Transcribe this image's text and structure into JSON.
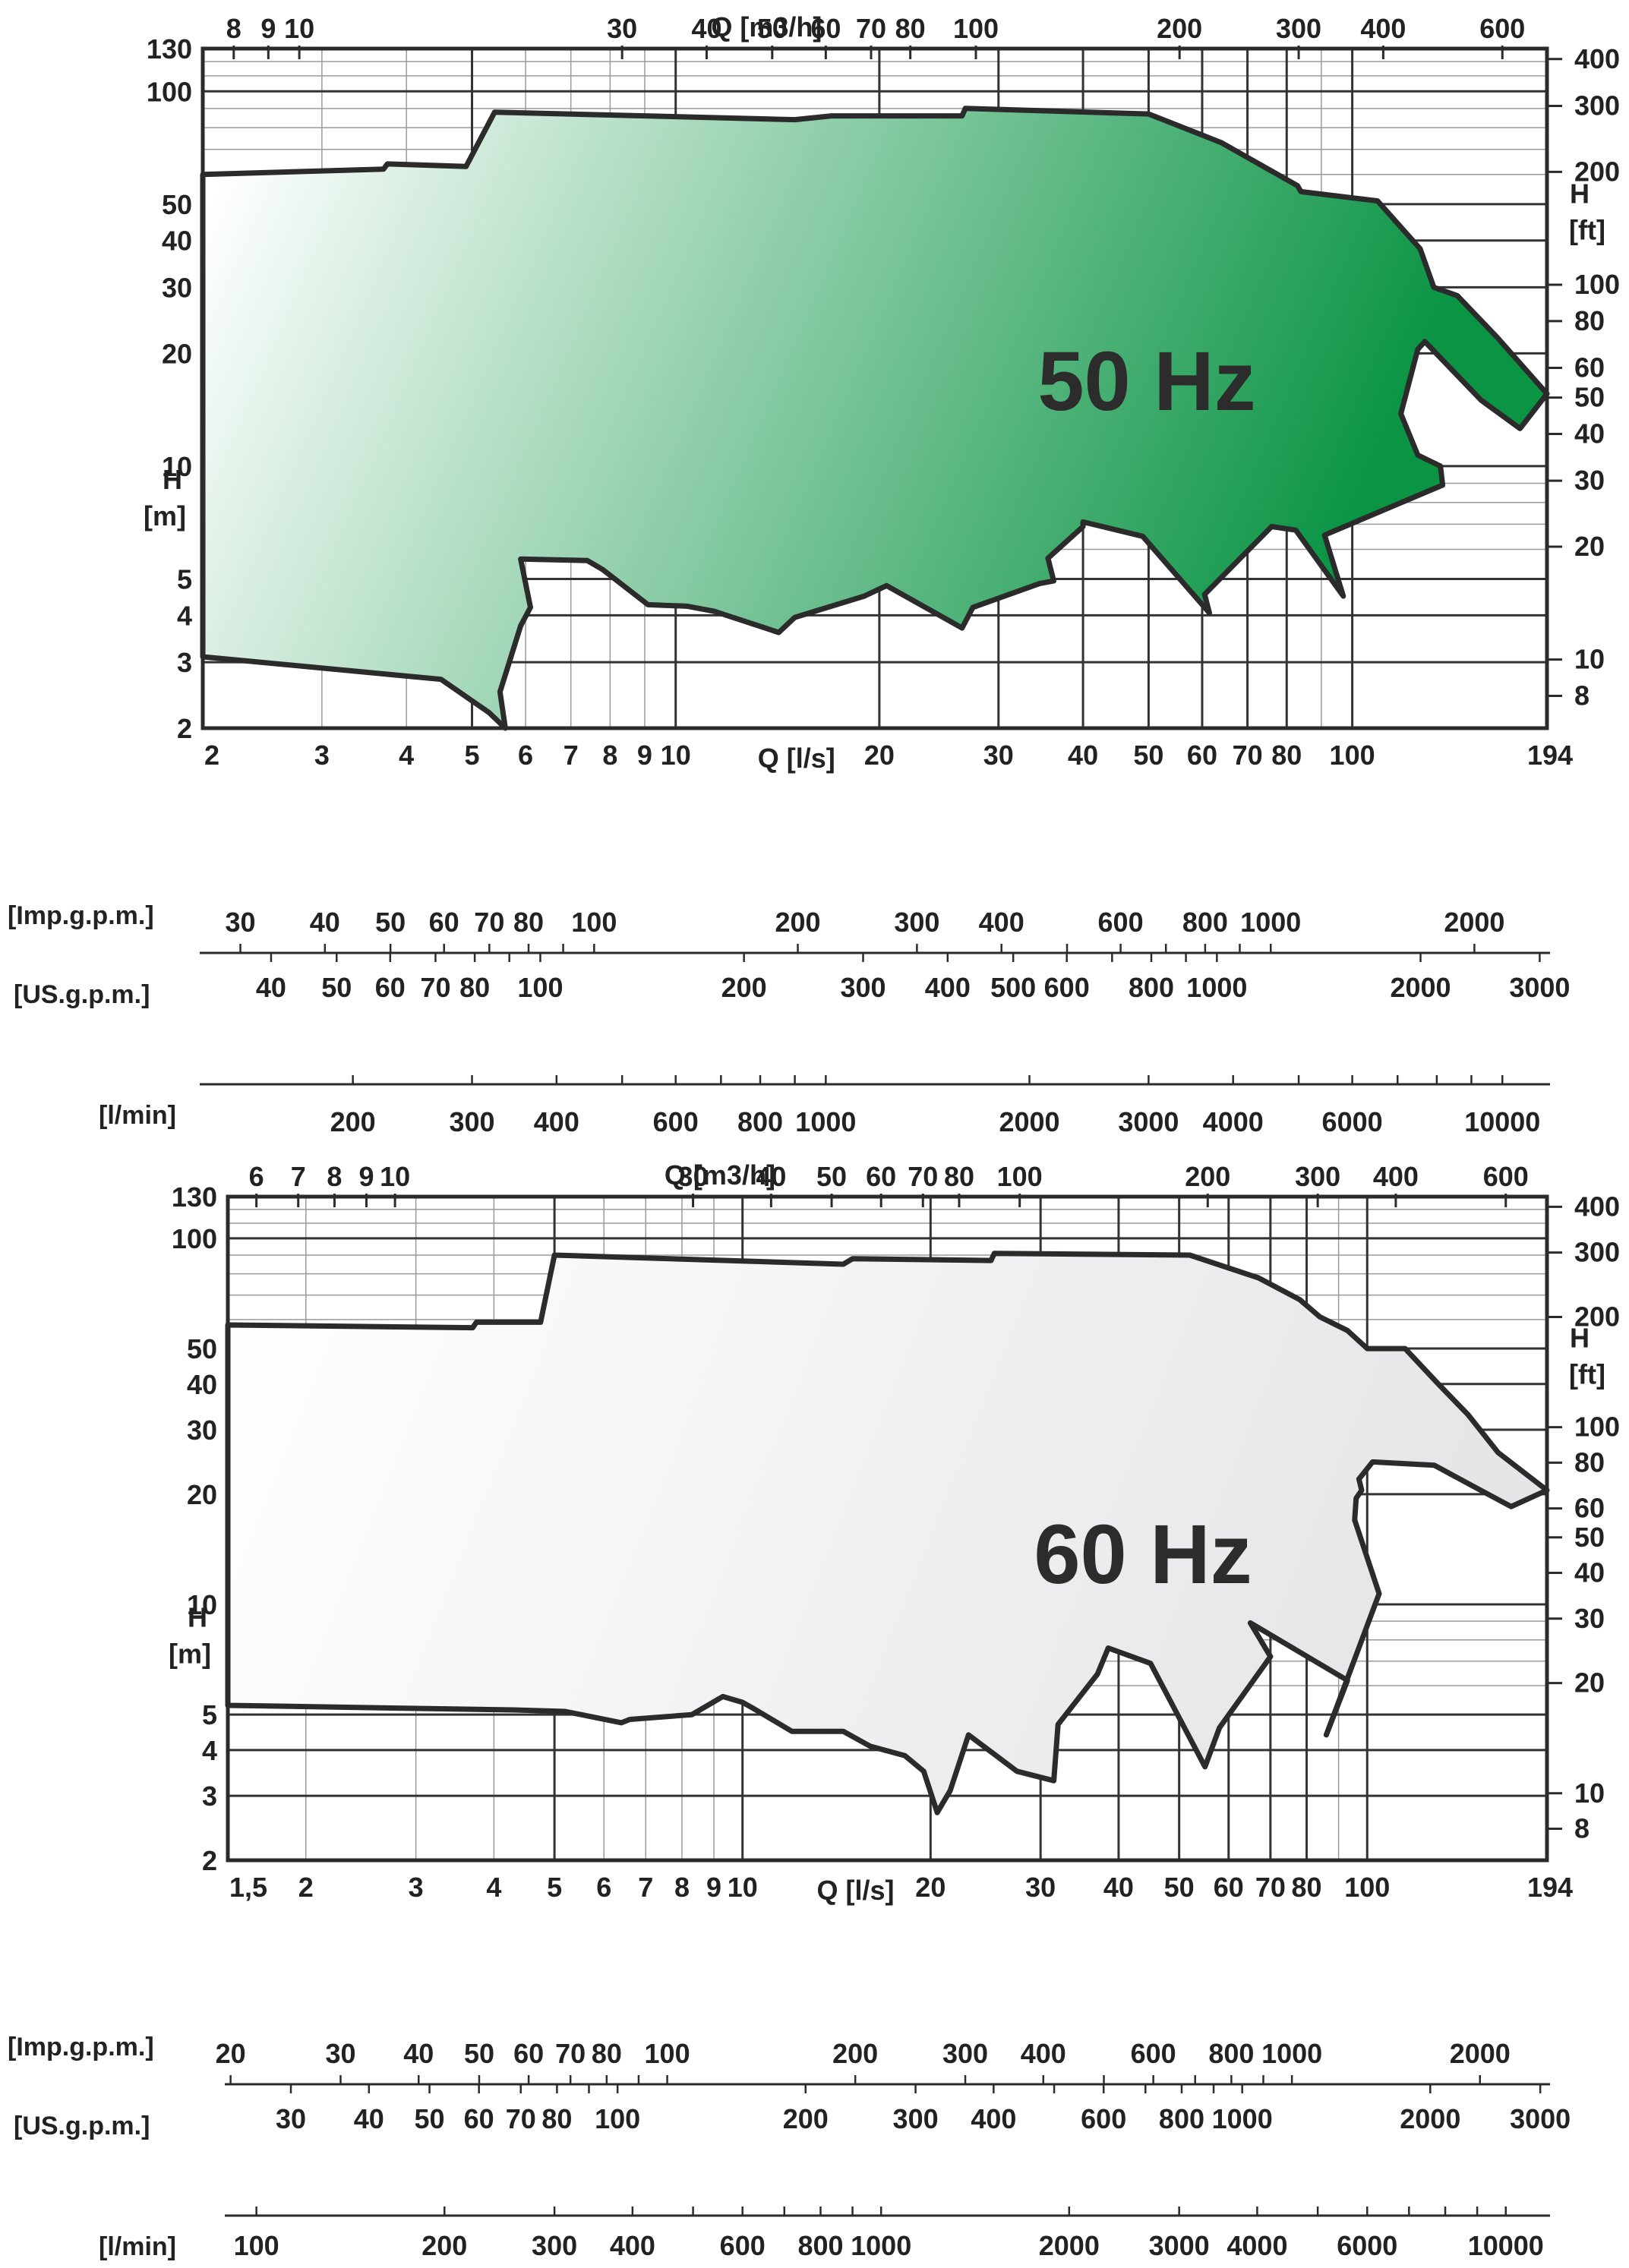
{
  "colors": {
    "frame": "#2b2b2b",
    "grid_major": "#333333",
    "grid_minor": "#9a9a9a",
    "envelope_50_light": "#ffffff",
    "envelope_50_dark": "#0a9444",
    "envelope_60_light": "#ffffff",
    "envelope_60_dark": "#e4e6e7",
    "text": "#222222"
  },
  "chart_data": [
    {
      "type": "area",
      "title": "50 Hz",
      "x_scale": "log",
      "y_scale": "log",
      "xlabel": "Q [l/s]",
      "ylabel": "H [m]",
      "xlim": [
        2,
        194
      ],
      "ylim": [
        2,
        130
      ],
      "x_ticks": [
        "2",
        "3",
        "4",
        "5",
        "6",
        "7",
        "8",
        "9",
        "10",
        "20",
        "30",
        "40",
        "50",
        "60",
        "70",
        "80",
        "100",
        "194"
      ],
      "y_ticks": [
        "2",
        "3",
        "4",
        "5",
        "10",
        "20",
        "30",
        "40",
        "50",
        "100",
        "130"
      ],
      "top_axis": {
        "label": "Q [m3/h]",
        "ticks": [
          "8",
          "9",
          "10",
          "30",
          "40",
          "50",
          "60",
          "70",
          "80",
          "100",
          "200",
          "300",
          "400",
          "600"
        ]
      },
      "right_axis": {
        "label": "H [ft]",
        "ticks": [
          "8",
          "10",
          "20",
          "30",
          "40",
          "50",
          "60",
          "80",
          "100",
          "200",
          "300",
          "400"
        ]
      },
      "envelope": [
        [
          2,
          60
        ],
        [
          3.7,
          62
        ],
        [
          3.75,
          64
        ],
        [
          4.9,
          63
        ],
        [
          5.4,
          88
        ],
        [
          15,
          84
        ],
        [
          17,
          86
        ],
        [
          26.5,
          86
        ],
        [
          26.8,
          90
        ],
        [
          50,
          87
        ],
        [
          64,
          73
        ],
        [
          83,
          56
        ],
        [
          84,
          54
        ],
        [
          109,
          51
        ],
        [
          126,
          38
        ],
        [
          132,
          30
        ],
        [
          143,
          28.5
        ],
        [
          164,
          22
        ],
        [
          194,
          15.6
        ],
        [
          177,
          12.6
        ],
        [
          155,
          15
        ],
        [
          128,
          21.5
        ],
        [
          125,
          20.5
        ],
        [
          118,
          13.8
        ],
        [
          125,
          10.7
        ],
        [
          135,
          10
        ],
        [
          136,
          8.9
        ],
        [
          91,
          6.55
        ],
        [
          97,
          4.5
        ],
        [
          82.5,
          6.75
        ],
        [
          76,
          6.9
        ],
        [
          60.5,
          4.55
        ],
        [
          61.5,
          4.06
        ],
        [
          49,
          6.5
        ],
        [
          40,
          7.1
        ],
        [
          40,
          6.9
        ],
        [
          35.5,
          5.68
        ],
        [
          36.2,
          4.94
        ],
        [
          34.5,
          4.86
        ],
        [
          27.5,
          4.2
        ],
        [
          26.5,
          3.7
        ],
        [
          20.5,
          4.8
        ],
        [
          19,
          4.5
        ],
        [
          15,
          3.95
        ],
        [
          14.2,
          3.6
        ],
        [
          11.4,
          4.1
        ],
        [
          10.4,
          4.23
        ],
        [
          9.1,
          4.27
        ],
        [
          7.8,
          5.3
        ],
        [
          7.4,
          5.6
        ],
        [
          5.9,
          5.65
        ],
        [
          6.1,
          4.2
        ],
        [
          5.9,
          3.75
        ],
        [
          5.5,
          2.5
        ],
        [
          5.6,
          2.0
        ],
        [
          5.3,
          2.2
        ],
        [
          4.5,
          2.7
        ],
        [
          2,
          3.1
        ]
      ]
    },
    {
      "type": "area",
      "title": "60 Hz",
      "x_scale": "log",
      "y_scale": "log",
      "xlabel": "Q [l/s]",
      "ylabel": "H [m]",
      "xlim": [
        1.5,
        194
      ],
      "ylim": [
        2,
        130
      ],
      "x_ticks": [
        "1,5",
        "2",
        "3",
        "4",
        "5",
        "6",
        "7",
        "8",
        "9",
        "10",
        "20",
        "30",
        "40",
        "50",
        "60",
        "70",
        "80",
        "100",
        "194"
      ],
      "y_ticks": [
        "2",
        "3",
        "4",
        "5",
        "10",
        "20",
        "30",
        "40",
        "50",
        "100",
        "130"
      ],
      "top_axis": {
        "label": "Q [m3/h]",
        "ticks": [
          "6",
          "7",
          "8",
          "9",
          "10",
          "30",
          "40",
          "50",
          "60",
          "70",
          "80",
          "100",
          "200",
          "300",
          "400",
          "600"
        ]
      },
      "right_axis": {
        "label": "H [ft]",
        "ticks": [
          "8",
          "10",
          "20",
          "30",
          "40",
          "50",
          "60",
          "80",
          "100",
          "200",
          "300",
          "400"
        ]
      },
      "envelope": [
        [
          1.5,
          58
        ],
        [
          3.7,
          57
        ],
        [
          3.75,
          59
        ],
        [
          4.75,
          59
        ],
        [
          5,
          90
        ],
        [
          14.5,
          85
        ],
        [
          15,
          88
        ],
        [
          25,
          87
        ],
        [
          25.3,
          91
        ],
        [
          52,
          90
        ],
        [
          67,
          78
        ],
        [
          78,
          68
        ],
        [
          84,
          61
        ],
        [
          93,
          56
        ],
        [
          100,
          50
        ],
        [
          115,
          50
        ],
        [
          130,
          40
        ],
        [
          145,
          33
        ],
        [
          162,
          26
        ],
        [
          194,
          20.5
        ],
        [
          170,
          18.5
        ],
        [
          148,
          21
        ],
        [
          128,
          24
        ],
        [
          102,
          24.5
        ],
        [
          97,
          22
        ],
        [
          98,
          20.5
        ],
        [
          96,
          19.5
        ],
        [
          95.5,
          17
        ],
        [
          104.5,
          10.7
        ],
        [
          86,
          4.4
        ],
        [
          93,
          6.2
        ],
        [
          65,
          8.9
        ],
        [
          70,
          7.2
        ],
        [
          58,
          4.6
        ],
        [
          55,
          3.6
        ],
        [
          45,
          6.9
        ],
        [
          38.5,
          7.6
        ],
        [
          37,
          6.45
        ],
        [
          32,
          4.7
        ],
        [
          31.5,
          3.3
        ],
        [
          27.5,
          3.5
        ],
        [
          23,
          4.4
        ],
        [
          21.5,
          3.1
        ],
        [
          20.5,
          2.7
        ],
        [
          19.5,
          3.5
        ],
        [
          18.2,
          3.86
        ],
        [
          16,
          4.1
        ],
        [
          14.5,
          4.5
        ],
        [
          12,
          4.5
        ],
        [
          10.4,
          5.2
        ],
        [
          10,
          5.4
        ],
        [
          9.3,
          5.6
        ],
        [
          8.3,
          5
        ],
        [
          6.6,
          4.85
        ],
        [
          6.4,
          4.75
        ],
        [
          5.2,
          5.1
        ],
        [
          4.3,
          5.15
        ],
        [
          1.5,
          5.3
        ]
      ]
    }
  ],
  "bottom_scales": [
    {
      "imp_label": "[Imp.g.p.m.]",
      "us_label": "[US.g.p.m.]",
      "lmin_label": "[l/min]",
      "imp_ticks": [
        "30",
        "40",
        "50",
        "60",
        "70",
        "80",
        "100",
        "200",
        "300",
        "400",
        "600",
        "800",
        "1000",
        "2000"
      ],
      "us_ticks": [
        "40",
        "50",
        "60",
        "70",
        "80",
        "100",
        "200",
        "300",
        "400",
        "500",
        "600",
        "800",
        "1000",
        "2000",
        "3000"
      ],
      "lmin_ticks": [
        "200",
        "300",
        "400",
        "600",
        "800",
        "1000",
        "2000",
        "3000",
        "4000",
        "6000",
        "10000"
      ]
    },
    {
      "imp_label": "[Imp.g.p.m.]",
      "us_label": "[US.g.p.m.]",
      "lmin_label": "[l/min]",
      "imp_ticks": [
        "20",
        "30",
        "40",
        "50",
        "60",
        "70",
        "80",
        "100",
        "200",
        "300",
        "400",
        "600",
        "800",
        "1000",
        "2000"
      ],
      "us_ticks": [
        "30",
        "40",
        "50",
        "60",
        "70",
        "80",
        "100",
        "200",
        "300",
        "400",
        "600",
        "800",
        "1000",
        "2000",
        "3000"
      ],
      "lmin_ticks": [
        "100",
        "200",
        "300",
        "400",
        "600",
        "800",
        "1000",
        "2000",
        "3000",
        "4000",
        "6000",
        "10000"
      ]
    }
  ]
}
